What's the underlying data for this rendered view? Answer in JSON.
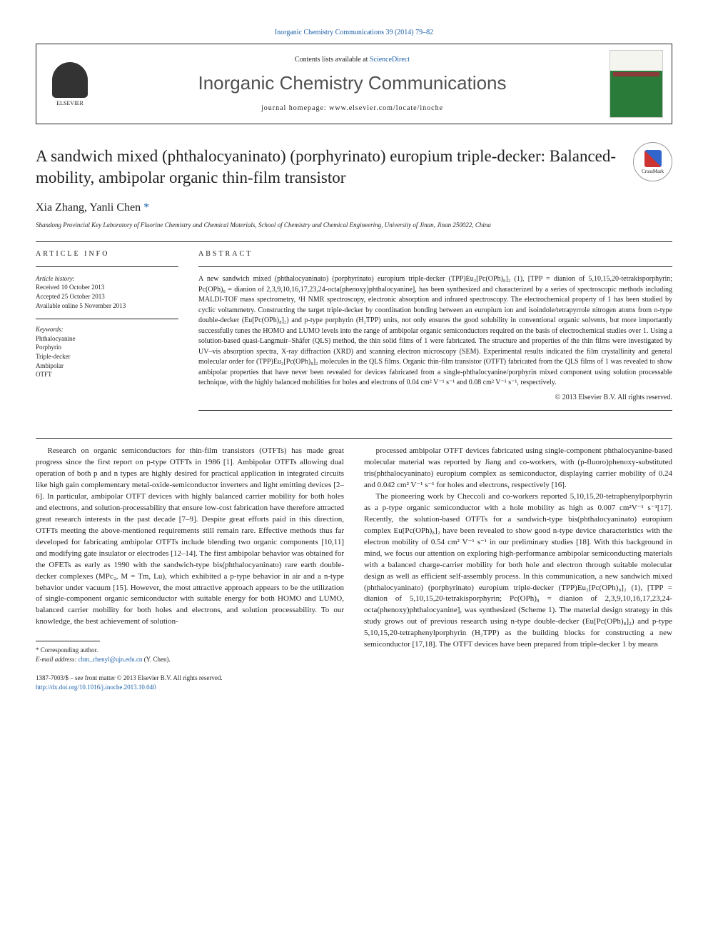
{
  "top_link": "Inorganic Chemistry Communications 39 (2014) 79–82",
  "header": {
    "contents_prefix": "Contents lists available at ",
    "contents_link": "ScienceDirect",
    "journal": "Inorganic Chemistry Communications",
    "homepage_label": "journal homepage: ",
    "homepage_url": "www.elsevier.com/locate/inoche",
    "publisher": "ELSEVIER"
  },
  "crossmark_label": "CrossMark",
  "title": "A sandwich mixed (phthalocyaninato) (porphyrinato) europium triple-decker: Balanced-mobility, ambipolar organic thin-film transistor",
  "authors": "Xia Zhang, Yanli Chen ",
  "corresp_marker": "*",
  "affiliation": "Shandong Provincial Key Laboratory of Fluorine Chemistry and Chemical Materials, School of Chemistry and Chemical Engineering, University of Jinan, Jinan 250022, China",
  "article_info": {
    "heading": "ARTICLE INFO",
    "history_head": "Article history:",
    "received": "Received 10 October 2013",
    "accepted": "Accepted 25 October 2013",
    "online": "Available online 5 November 2013",
    "keywords_head": "Keywords:",
    "keywords": [
      "Phthalocyanine",
      "Porphyrin",
      "Triple-decker",
      "Ambipolar",
      "OTFT"
    ]
  },
  "abstract": {
    "heading": "ABSTRACT",
    "text": "A new sandwich mixed (phthalocyaninato) (porphyrinato) europium triple-decker (TPP)Eu₂[Pc(OPh)₈]₂ (1), [TPP = dianion of 5,10,15,20-tetrakisporphyrin; Pc(OPh)₈ = dianion of 2,3,9,10,16,17,23,24-octa(phenoxy)phthalocyanine], has been synthesized and characterized by a series of spectroscopic methods including MALDI-TOF mass spectrometry, ¹H NMR spectroscopy, electronic absorption and infrared spectroscopy. The electrochemical property of 1 has been studied by cyclic voltammetry. Constructing the target triple-decker by coordination bonding between an europium ion and isoindole/tetrapyrrole nitrogen atoms from n-type double-decker (Eu[Pc(OPh)₈]₂) and p-type porphyrin (H₂TPP) units, not only ensures the good solubility in conventional organic solvents, but more importantly successfully tunes the HOMO and LUMO levels into the range of ambipolar organic semiconductors required on the basis of electrochemical studies over 1. Using a solution-based quasi-Langmuir–Shäfer (QLS) method, the thin solid films of 1 were fabricated. The structure and properties of the thin films were investigated by UV–vis absorption spectra, X-ray diffraction (XRD) and scanning electron microscopy (SEM). Experimental results indicated the film crystallinity and general molecular order for (TPP)Eu₂[Pc(OPh)₈]₂ molecules in the QLS films. Organic thin-film transistor (OTFT) fabricated from the QLS films of 1 was revealed to show ambipolar properties that have never been revealed for devices fabricated from a single-phthalocyanine/porphyrin mixed component using solution processable technique, with the highly balanced mobilities for holes and electrons of 0.04 cm² V⁻¹ s⁻¹ and 0.08 cm² V⁻¹ s⁻¹, respectively.",
    "copyright": "© 2013 Elsevier B.V. All rights reserved."
  },
  "body": {
    "p1": "Research on organic semiconductors for thin-film transistors (OTFTs) has made great progress since the first report on p-type OTFTs in 1986 [1]. Ambipolar OTFTs allowing dual operation of both p and n types are highly desired for practical application in integrated circuits like high gain complementary metal-oxide-semiconductor inverters and light emitting devices [2–6]. In particular, ambipolar OTFT devices with highly balanced carrier mobility for both holes and electrons, and solution-processability that ensure low-cost fabrication have therefore attracted great research interests in the past decade [7–9]. Despite great efforts paid in this direction, OTFTs meeting the above-mentioned requirements still remain rare. Effective methods thus far developed for fabricating ambipolar OTFTs include blending two organic components [10,11] and modifying gate insulator or electrodes [12–14]. The first ambipolar behavior was obtained for the OFETs as early as 1990 with the sandwich-type bis(phthalocyaninato) rare earth double-decker complexes (MPc₂, M = Tm, Lu), which exhibited a p-type behavior in air and a n-type behavior under vacuum [15]. However, the most attractive approach appears to be the utilization of single-component organic semiconductor with suitable energy for both HOMO and LUMO, balanced carrier mobility for both holes and electrons, and solution processability. To our knowledge, the best achievement of solution-",
    "p2": "processed ambipolar OTFT devices fabricated using single-component phthalocyanine-based molecular material was reported by Jiang and co-workers, with (p-fluoro)phenoxy-substituted tris(phthalocyaninato) europium complex as semiconductor, displaying carrier mobility of 0.24 and 0.042 cm² V⁻¹ s⁻¹ for holes and electrons, respectively [16].",
    "p3": "The pioneering work by Checcoli and co-workers reported 5,10,15,20-tetraphenylporphyrin as a p-type organic semiconductor with a hole mobility as high as 0.007 cm²V⁻¹ s⁻¹[17]. Recently, the solution-based OTFTs for a sandwich-type bis(phthalocyaninato) europium complex Eu[Pc(OPh)₈]₂ have been revealed to show good n-type device characteristics with the electron mobility of 0.54 cm² V⁻¹ s⁻¹ in our preliminary studies [18]. With this background in mind, we focus our attention on exploring high-performance ambipolar semiconducting materials with a balanced charge-carrier mobility for both hole and electron through suitable molecular design as well as efficient self-assembly process. In this communication, a new sandwich mixed (phthalocyaninato) (porphyrinato) europium triple-decker (TPP)Eu₂[Pc(OPh)₈]₂ (1), [TPP = dianion of 5,10,15,20-tetrakisporphyrin; Pc(OPh)₈ = dianion of 2,3,9,10,16,17,23,24-octa(phenoxy)phthalocyanine], was synthesized (Scheme 1). The material design strategy in this study grows out of previous research using n-type double-decker (Eu[Pc(OPh)₈]₂) and p-type 5,10,15,20-tetraphenylporphyrin (H₂TPP) as the building blocks for constructing a new semiconductor [17,18]. The OTFT devices have been prepared from triple-decker 1 by means"
  },
  "footnote": {
    "corresp": "* Corresponding author.",
    "email_label": "E-mail address: ",
    "email": "chm_chenyl@ujn.edu.cn",
    "email_suffix": " (Y. Chen)."
  },
  "footer": {
    "issn_line": "1387-7003/$ – see front matter © 2013 Elsevier B.V. All rights reserved.",
    "doi": "http://dx.doi.org/10.1016/j.inoche.2013.10.040"
  }
}
